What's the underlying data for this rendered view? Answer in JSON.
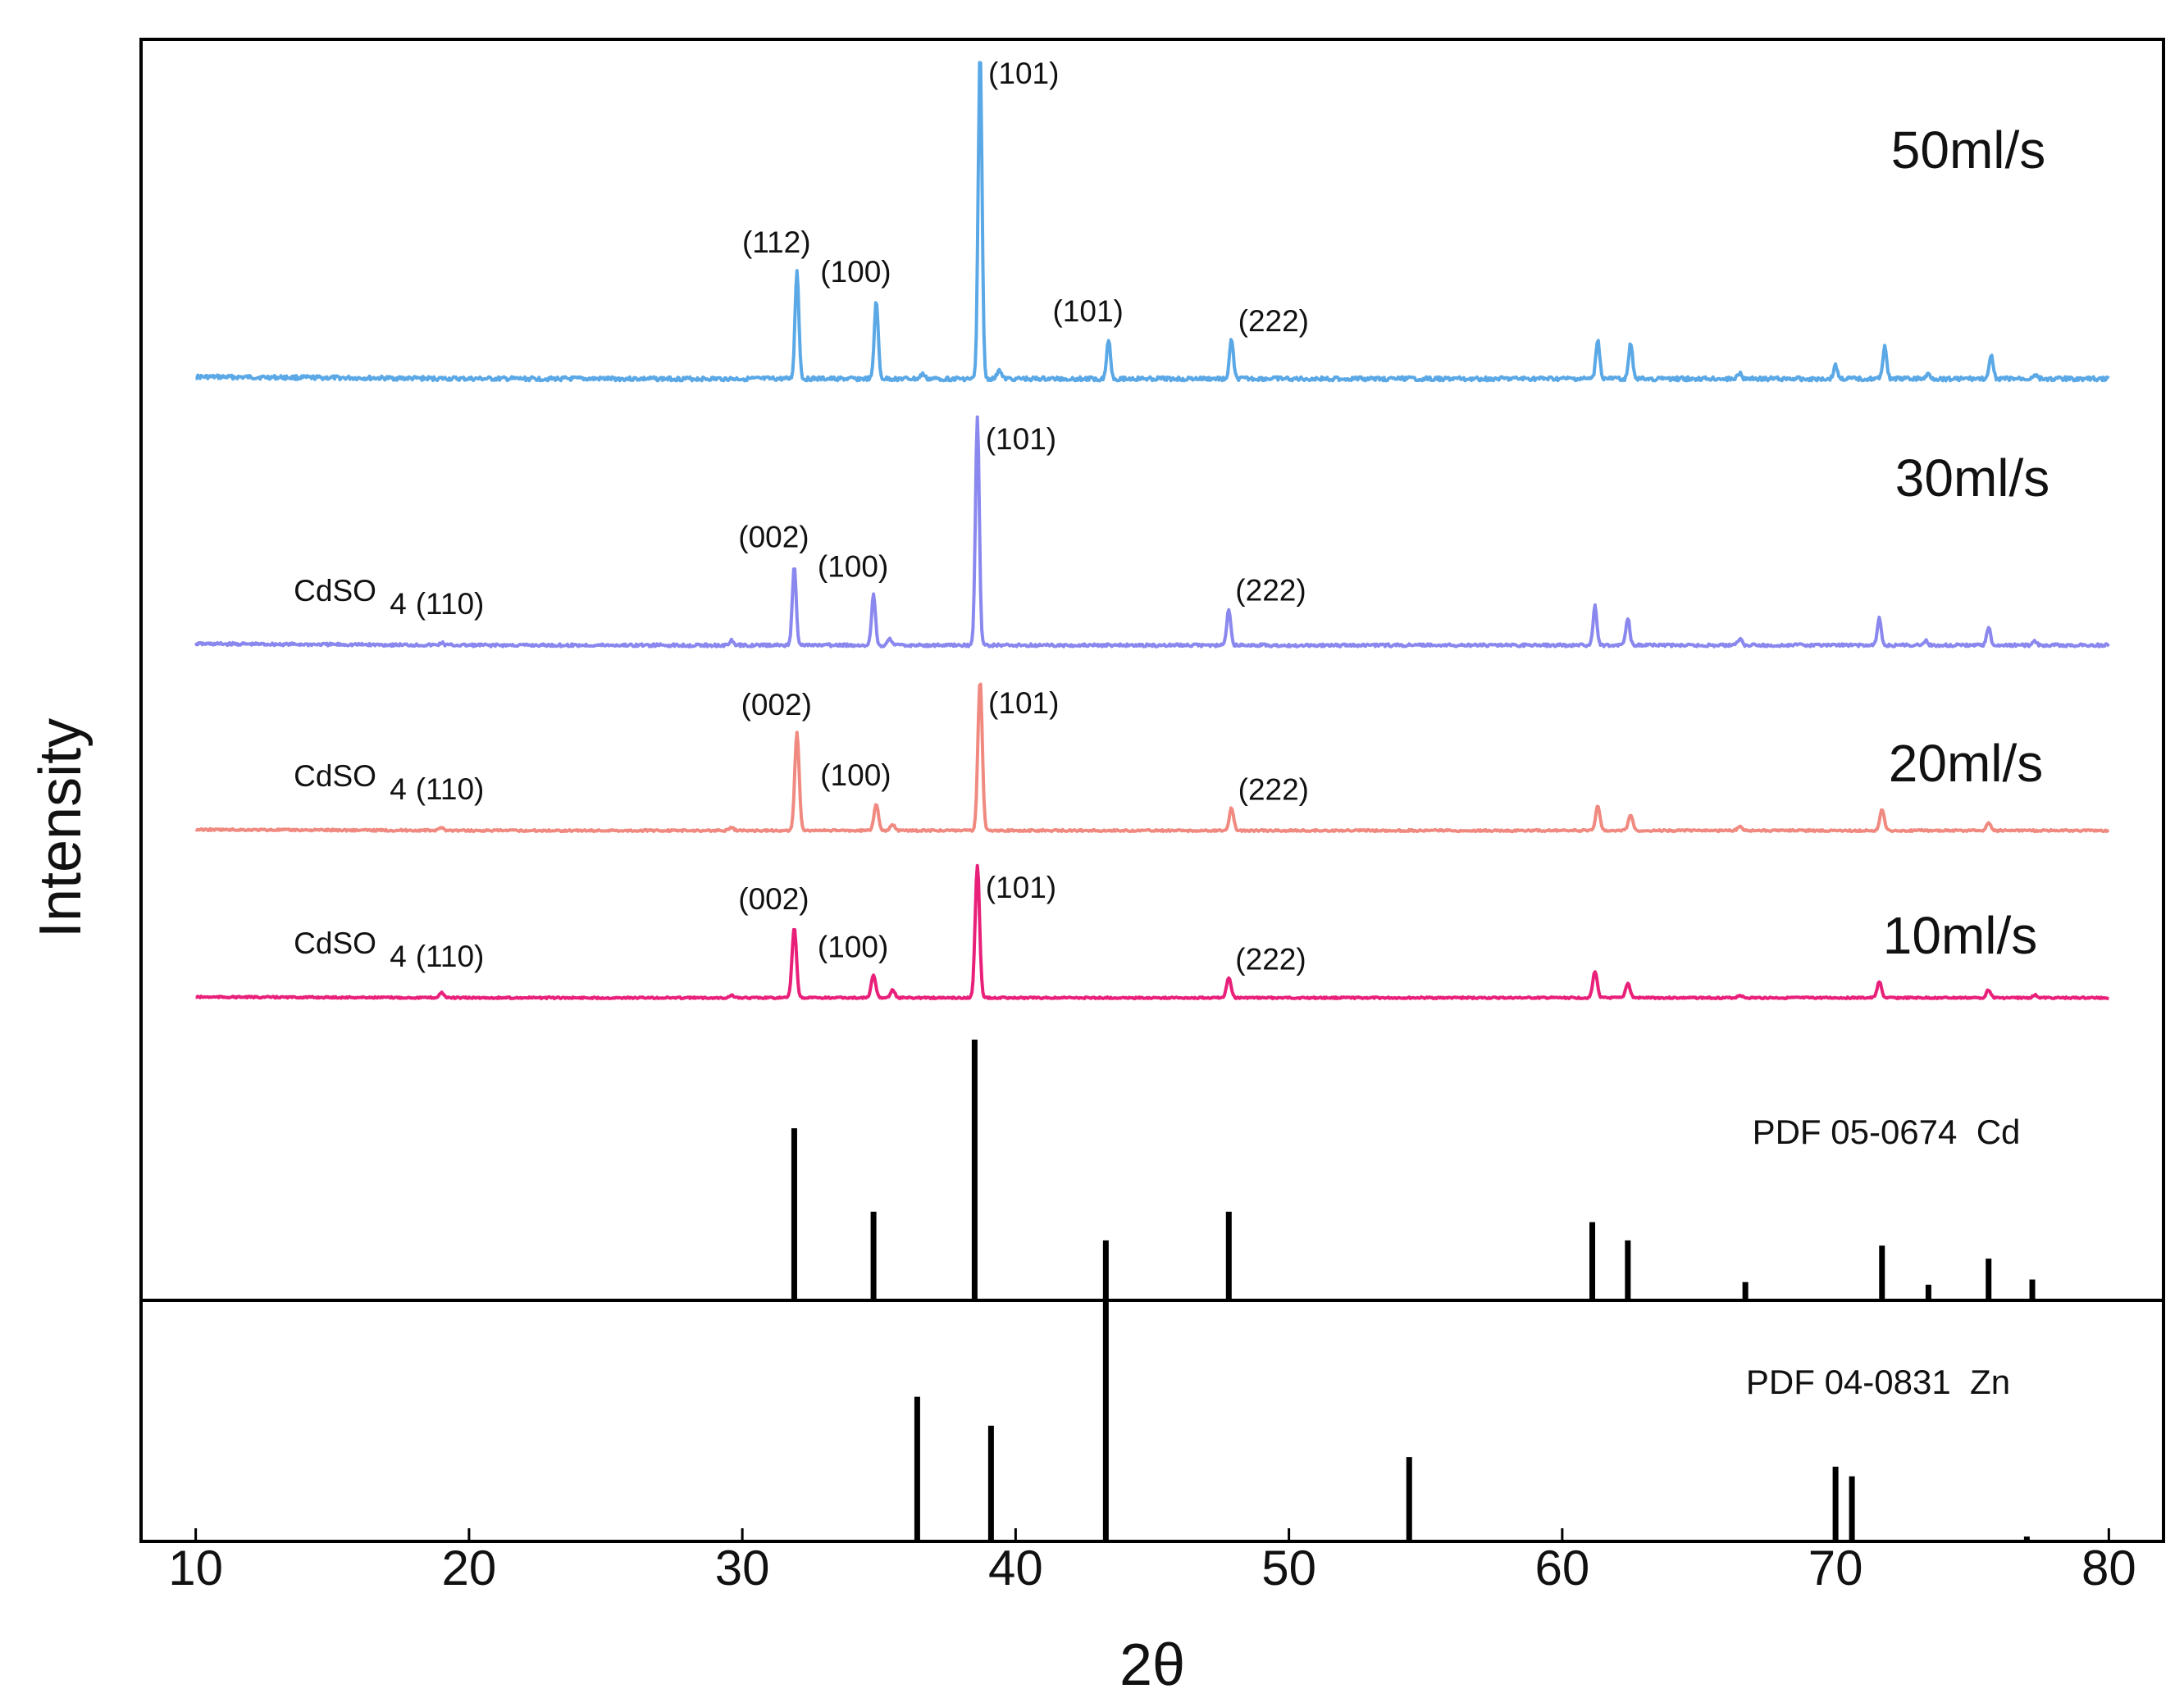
{
  "chart_data": {
    "type": "line",
    "title": "",
    "xlabel": "2θ",
    "ylabel": "Intensity",
    "xlim": [
      8,
      82
    ],
    "x_ticks": [
      "10",
      "20",
      "30",
      "40",
      "50",
      "60",
      "70",
      "80"
    ],
    "series": [
      {
        "name": "50ml/s",
        "color": "#5aa8e6",
        "baseline_rel": 0.0,
        "peaks": [
          {
            "x": 32.0,
            "h": 0.33
          },
          {
            "x": 34.9,
            "h": 0.24
          },
          {
            "x": 36.6,
            "h": 0.015
          },
          {
            "x": 38.7,
            "h": 1.0
          },
          {
            "x": 39.4,
            "h": 0.03
          },
          {
            "x": 43.4,
            "h": 0.12
          },
          {
            "x": 47.9,
            "h": 0.12
          },
          {
            "x": 61.3,
            "h": 0.12
          },
          {
            "x": 62.5,
            "h": 0.11
          },
          {
            "x": 66.5,
            "h": 0.02
          },
          {
            "x": 70.0,
            "h": 0.04
          },
          {
            "x": 71.8,
            "h": 0.1
          },
          {
            "x": 73.4,
            "h": 0.015
          },
          {
            "x": 75.7,
            "h": 0.07
          },
          {
            "x": 77.3,
            "h": 0.015
          }
        ],
        "annotations": [
          {
            "x": 38.7,
            "text": "(101)"
          },
          {
            "x": 32.0,
            "text": "(112)"
          },
          {
            "x": 34.9,
            "text": "(100)"
          },
          {
            "x": 43.4,
            "text": "(101)"
          },
          {
            "x": 47.9,
            "text": "(222)"
          }
        ]
      },
      {
        "name": "30ml/s",
        "color": "#8a88ee",
        "baseline_rel": 0.0,
        "peaks": [
          {
            "x": 19.0,
            "h": 0.01
          },
          {
            "x": 29.6,
            "h": 0.02
          },
          {
            "x": 31.9,
            "h": 0.35
          },
          {
            "x": 34.8,
            "h": 0.22
          },
          {
            "x": 35.4,
            "h": 0.03
          },
          {
            "x": 38.6,
            "h": 1.0
          },
          {
            "x": 47.8,
            "h": 0.16
          },
          {
            "x": 61.2,
            "h": 0.17
          },
          {
            "x": 62.4,
            "h": 0.12
          },
          {
            "x": 66.5,
            "h": 0.03
          },
          {
            "x": 71.6,
            "h": 0.12
          },
          {
            "x": 73.3,
            "h": 0.02
          },
          {
            "x": 75.6,
            "h": 0.08
          },
          {
            "x": 77.3,
            "h": 0.02
          }
        ],
        "annotations": [
          {
            "x": 38.6,
            "text": "(101)"
          },
          {
            "x": 31.9,
            "text": "(002)"
          },
          {
            "x": 34.8,
            "text": "(100)"
          },
          {
            "x": 47.8,
            "text": "(222)"
          },
          {
            "x": 19.0,
            "text": "CdSO",
            "sub": "4",
            "suffix": "(110)"
          }
        ]
      },
      {
        "name": "20ml/s",
        "color": "#f08a80",
        "baseline_rel": 0.0,
        "peaks": [
          {
            "x": 19.0,
            "h": 0.02
          },
          {
            "x": 29.6,
            "h": 0.02
          },
          {
            "x": 32.0,
            "h": 0.65
          },
          {
            "x": 34.9,
            "h": 0.18
          },
          {
            "x": 35.5,
            "h": 0.04
          },
          {
            "x": 38.7,
            "h": 1.0
          },
          {
            "x": 47.9,
            "h": 0.15
          },
          {
            "x": 61.3,
            "h": 0.16
          },
          {
            "x": 62.5,
            "h": 0.1
          },
          {
            "x": 66.5,
            "h": 0.03
          },
          {
            "x": 71.7,
            "h": 0.14
          },
          {
            "x": 75.6,
            "h": 0.05
          }
        ],
        "annotations": [
          {
            "x": 38.7,
            "text": "(101)"
          },
          {
            "x": 32.0,
            "text": "(002)"
          },
          {
            "x": 34.9,
            "text": "(100)"
          },
          {
            "x": 47.9,
            "text": "(222)"
          },
          {
            "x": 19.0,
            "text": "CdSO",
            "sub": "4",
            "suffix": "(110)"
          }
        ]
      },
      {
        "name": "10ml/s",
        "color": "#e8207a",
        "baseline_rel": 0.0,
        "peaks": [
          {
            "x": 19.0,
            "h": 0.04
          },
          {
            "x": 29.6,
            "h": 0.02
          },
          {
            "x": 31.9,
            "h": 0.53
          },
          {
            "x": 34.8,
            "h": 0.17
          },
          {
            "x": 35.5,
            "h": 0.06
          },
          {
            "x": 38.6,
            "h": 1.0
          },
          {
            "x": 47.8,
            "h": 0.15
          },
          {
            "x": 61.2,
            "h": 0.2
          },
          {
            "x": 62.4,
            "h": 0.11
          },
          {
            "x": 66.5,
            "h": 0.02
          },
          {
            "x": 71.6,
            "h": 0.12
          },
          {
            "x": 75.6,
            "h": 0.06
          },
          {
            "x": 77.3,
            "h": 0.02
          }
        ],
        "annotations": [
          {
            "x": 38.6,
            "text": "(101)"
          },
          {
            "x": 31.9,
            "text": "(002)"
          },
          {
            "x": 34.8,
            "text": "(100)"
          },
          {
            "x": 47.8,
            "text": "(222)"
          },
          {
            "x": 19.0,
            "text": "CdSO",
            "sub": "4",
            "suffix": "(110)"
          }
        ]
      }
    ],
    "references": [
      {
        "name": "PDF 05-0674  Cd",
        "lines": [
          {
            "x": 31.9,
            "h": 0.66
          },
          {
            "x": 34.8,
            "h": 0.34
          },
          {
            "x": 38.5,
            "h": 1.0
          },
          {
            "x": 43.3,
            "h": 0.23
          },
          {
            "x": 47.8,
            "h": 0.34
          },
          {
            "x": 61.1,
            "h": 0.3
          },
          {
            "x": 62.4,
            "h": 0.23
          },
          {
            "x": 66.7,
            "h": 0.07
          },
          {
            "x": 71.7,
            "h": 0.21
          },
          {
            "x": 73.4,
            "h": 0.06
          },
          {
            "x": 75.6,
            "h": 0.16
          },
          {
            "x": 77.2,
            "h": 0.08
          }
        ]
      },
      {
        "name": "PDF 04-0831  Zn",
        "lines": [
          {
            "x": 36.4,
            "h": 0.6
          },
          {
            "x": 39.1,
            "h": 0.48
          },
          {
            "x": 43.3,
            "h": 1.0
          },
          {
            "x": 54.4,
            "h": 0.35
          },
          {
            "x": 70.0,
            "h": 0.31
          },
          {
            "x": 70.6,
            "h": 0.27
          },
          {
            "x": 77.0,
            "h": 0.02
          }
        ]
      }
    ]
  }
}
